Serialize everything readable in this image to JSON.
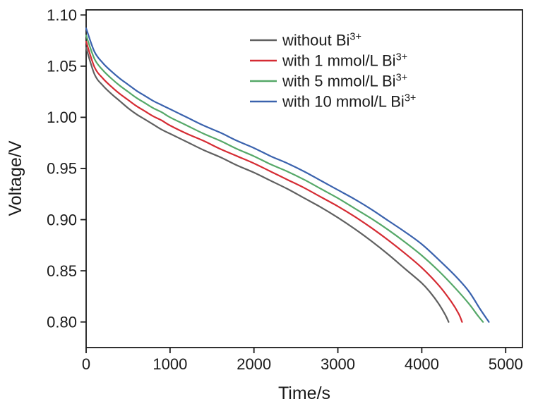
{
  "chart_data": {
    "type": "line",
    "title": "",
    "xlabel": "Time/s",
    "ylabel": "Voltage/V",
    "xlim": [
      0,
      5200
    ],
    "ylim": [
      0.775,
      1.105
    ],
    "xticks": [
      0,
      1000,
      2000,
      3000,
      4000,
      5000
    ],
    "xtick_labels": [
      "0",
      "1000",
      "2000",
      "3000",
      "4000",
      "5000"
    ],
    "yticks": [
      0.8,
      0.85,
      0.9,
      0.95,
      1.0,
      1.05,
      1.1
    ],
    "ytick_labels": [
      "0.80",
      "0.85",
      "0.90",
      "0.95",
      "1.00",
      "1.05",
      "1.10"
    ],
    "grid": false,
    "legend_position": "top-right-inside",
    "frame_color": "#1a1a1a",
    "series": [
      {
        "name": "without Bi³⁺",
        "legend_text": "without Bi",
        "legend_sup": "3+",
        "color": "#606060",
        "x": [
          0,
          100,
          200,
          300,
          400,
          500,
          600,
          700,
          800,
          900,
          1000,
          1200,
          1400,
          1600,
          1800,
          2000,
          2200,
          2400,
          2600,
          2800,
          3000,
          3200,
          3400,
          3600,
          3800,
          4000,
          4100,
          4200,
          4280,
          4320
        ],
        "y": [
          1.068,
          1.042,
          1.031,
          1.023,
          1.016,
          1.009,
          1.003,
          0.998,
          0.993,
          0.988,
          0.984,
          0.976,
          0.968,
          0.961,
          0.953,
          0.946,
          0.938,
          0.93,
          0.921,
          0.912,
          0.902,
          0.891,
          0.879,
          0.866,
          0.852,
          0.838,
          0.829,
          0.818,
          0.807,
          0.8
        ]
      },
      {
        "name": "with 1 mmol/L Bi³⁺",
        "legend_text": "with 1 mmol/L Bi",
        "legend_sup": "3+",
        "color": "#d52b33",
        "x": [
          0,
          100,
          200,
          300,
          400,
          500,
          600,
          700,
          800,
          900,
          1000,
          1200,
          1400,
          1600,
          1800,
          2000,
          2200,
          2400,
          2600,
          2800,
          3000,
          3200,
          3400,
          3600,
          3800,
          4000,
          4200,
          4350,
          4440,
          4480
        ],
        "y": [
          1.074,
          1.049,
          1.038,
          1.03,
          1.023,
          1.017,
          1.011,
          1.006,
          1.001,
          0.997,
          0.992,
          0.984,
          0.977,
          0.969,
          0.962,
          0.955,
          0.947,
          0.939,
          0.931,
          0.922,
          0.913,
          0.903,
          0.892,
          0.88,
          0.867,
          0.853,
          0.836,
          0.82,
          0.808,
          0.8
        ]
      },
      {
        "name": "with 5 mmol/L Bi³⁺",
        "legend_text": "with 5 mmol/L Bi",
        "legend_sup": "3+",
        "color": "#55a868",
        "x": [
          0,
          100,
          200,
          300,
          400,
          500,
          600,
          700,
          800,
          900,
          1000,
          1200,
          1400,
          1600,
          1800,
          2000,
          2200,
          2400,
          2600,
          2800,
          3000,
          3200,
          3400,
          3600,
          3800,
          4000,
          4200,
          4400,
          4560,
          4670,
          4730
        ],
        "y": [
          1.08,
          1.057,
          1.046,
          1.038,
          1.031,
          1.025,
          1.019,
          1.014,
          1.009,
          1.005,
          1.0,
          0.992,
          0.984,
          0.977,
          0.969,
          0.962,
          0.954,
          0.947,
          0.939,
          0.93,
          0.921,
          0.911,
          0.901,
          0.89,
          0.878,
          0.865,
          0.85,
          0.833,
          0.818,
          0.806,
          0.8
        ]
      },
      {
        "name": "with 10 mmol/L Bi³⁺",
        "legend_text": "with 10 mmol/L Bi",
        "legend_sup": "3+",
        "color": "#3a62ad",
        "x": [
          0,
          100,
          200,
          300,
          400,
          500,
          600,
          700,
          800,
          900,
          1000,
          1200,
          1400,
          1600,
          1800,
          2000,
          2200,
          2400,
          2600,
          2800,
          3000,
          3200,
          3400,
          3600,
          3800,
          4000,
          4200,
          4400,
          4560,
          4700,
          4800
        ],
        "y": [
          1.087,
          1.064,
          1.053,
          1.045,
          1.038,
          1.032,
          1.026,
          1.021,
          1.016,
          1.012,
          1.008,
          1.0,
          0.992,
          0.985,
          0.977,
          0.97,
          0.962,
          0.955,
          0.947,
          0.938,
          0.929,
          0.92,
          0.91,
          0.899,
          0.888,
          0.876,
          0.861,
          0.845,
          0.83,
          0.812,
          0.8
        ]
      }
    ]
  }
}
